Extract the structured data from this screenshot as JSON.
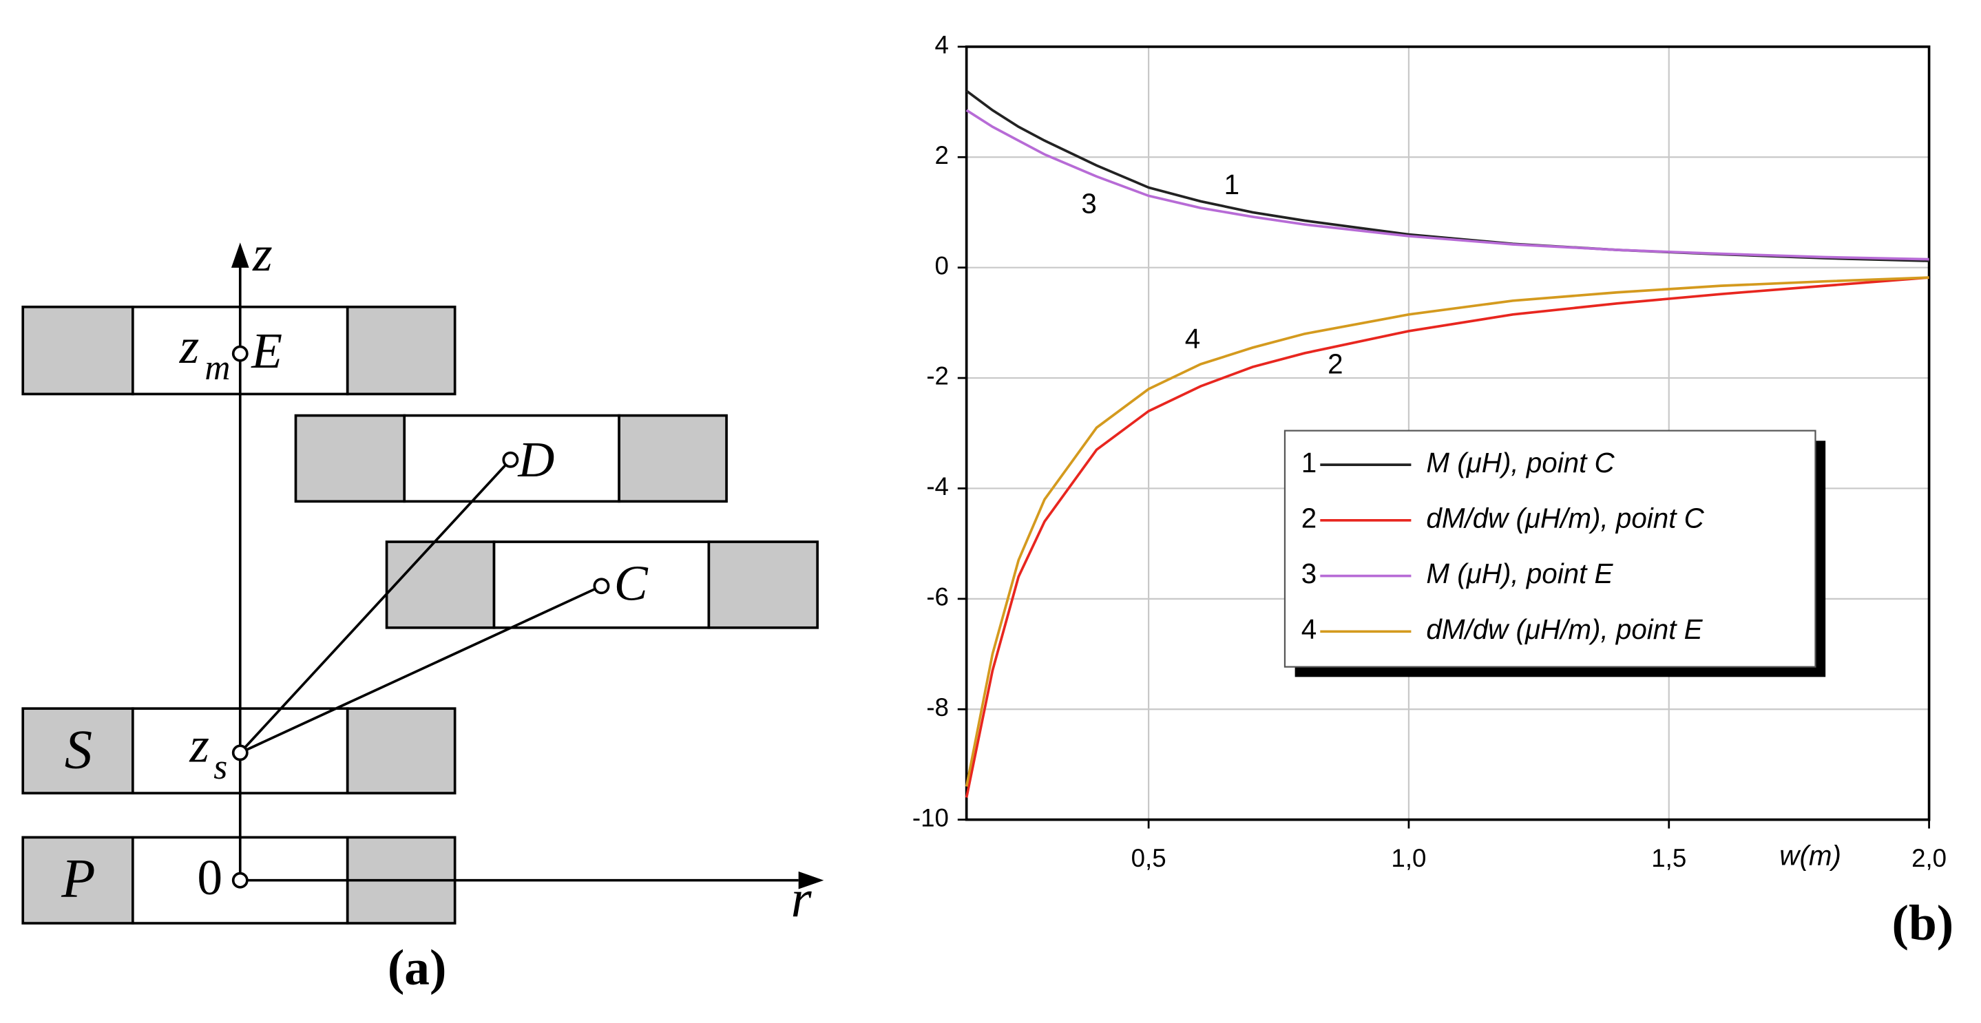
{
  "diagram": {
    "axis_z": "z",
    "axis_r": "r",
    "coil_s": "S",
    "coil_p": "P",
    "point_e": {
      "symbol": "z",
      "subscript": "m",
      "label": "E"
    },
    "point_d": "D",
    "point_c": "C",
    "point_s": {
      "symbol": "z",
      "subscript": "s"
    },
    "origin": "0",
    "panel_label": "(a)"
  },
  "chart_data": {
    "type": "line",
    "panel_label": "(b)",
    "xlabel": "w(m)",
    "x": [
      0.15,
      0.2,
      0.25,
      0.3,
      0.4,
      0.5,
      0.6,
      0.7,
      0.8,
      1.0,
      1.2,
      1.4,
      1.6,
      1.8,
      2.0
    ],
    "series": [
      {
        "name": "M (μH), point C",
        "curve_label": "1",
        "color": "#222222",
        "values": [
          3.2,
          2.85,
          2.55,
          2.3,
          1.85,
          1.45,
          1.2,
          1.0,
          0.85,
          0.6,
          0.43,
          0.32,
          0.24,
          0.17,
          0.12
        ]
      },
      {
        "name": "dM/dw (μH/m), point C",
        "curve_label": "2",
        "color": "#e8261f",
        "values": [
          -9.6,
          -7.3,
          -5.6,
          -4.6,
          -3.3,
          -2.6,
          -2.15,
          -1.8,
          -1.55,
          -1.15,
          -0.85,
          -0.65,
          -0.48,
          -0.33,
          -0.18
        ]
      },
      {
        "name": "M (μH), point E",
        "curve_label": "3",
        "color": "#b76bd6",
        "values": [
          2.85,
          2.55,
          2.3,
          2.05,
          1.65,
          1.3,
          1.08,
          0.92,
          0.78,
          0.57,
          0.42,
          0.32,
          0.25,
          0.19,
          0.15
        ]
      },
      {
        "name": "dM/dw (μH/m), point E",
        "curve_label": "4",
        "color": "#d49a1e",
        "values": [
          -9.4,
          -7.0,
          -5.3,
          -4.2,
          -2.9,
          -2.2,
          -1.75,
          -1.45,
          -1.2,
          -0.85,
          -0.6,
          -0.45,
          -0.33,
          -0.25,
          -0.18
        ]
      }
    ],
    "xlim": [
      0.15,
      2.0
    ],
    "ylim": [
      -10,
      4
    ],
    "xticks": [
      {
        "value": 0.5,
        "label": "0,5"
      },
      {
        "value": 1.0,
        "label": "1,0"
      },
      {
        "value": 1.5,
        "label": "1,5"
      },
      {
        "value": 2.0,
        "label": "2,0"
      }
    ],
    "yticks": [
      4,
      2,
      0,
      -2,
      -4,
      -6,
      -8,
      -10
    ],
    "grid": true,
    "legend": "center-right"
  }
}
